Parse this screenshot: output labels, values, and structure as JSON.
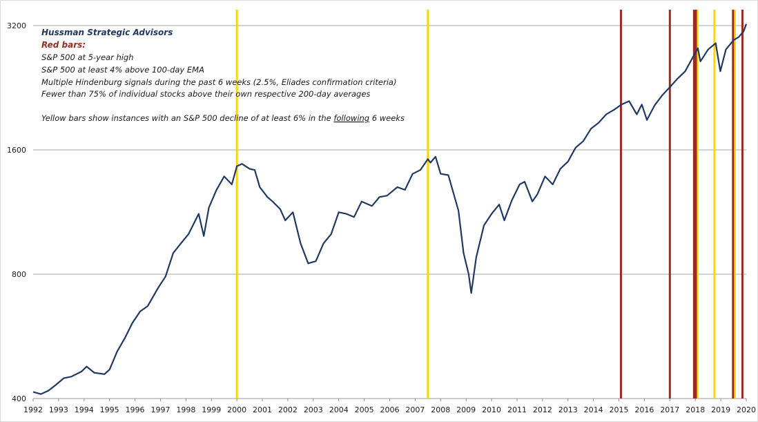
{
  "chart_data": {
    "type": "line",
    "y_scale": "log2",
    "ylim": [
      400,
      3200
    ],
    "y_ticks": [
      "400",
      "800",
      "1600",
      "3200"
    ],
    "xlim": [
      1992.0,
      2020.0
    ],
    "x_ticks": [
      "1992",
      "1993",
      "1994",
      "1995",
      "1996",
      "1997",
      "1998",
      "1999",
      "2000",
      "2001",
      "2002",
      "2003",
      "2004",
      "2005",
      "2006",
      "2007",
      "2008",
      "2009",
      "2010",
      "2011",
      "2012",
      "2013",
      "2014",
      "2015",
      "2016",
      "2017",
      "2018",
      "2019",
      "2020"
    ],
    "grid": "horizontal",
    "colors": {
      "series": "#1f3864",
      "red_bar": "#9b2d20",
      "yellow_bar": "#ffd400"
    },
    "series": [
      {
        "x": [
          1992.0,
          1992.3,
          1992.6,
          1992.9,
          1993.2,
          1993.5,
          1993.9,
          1994.1,
          1994.4,
          1994.8,
          1995.0,
          1995.3,
          1995.6,
          1995.9,
          1996.2,
          1996.5,
          1996.9,
          1997.2,
          1997.5,
          1997.8,
          1998.1,
          1998.5,
          1998.7,
          1998.9,
          1999.2,
          1999.5,
          1999.8,
          2000.0,
          2000.2,
          2000.5,
          2000.7,
          2000.9,
          2001.2,
          2001.4,
          2001.7,
          2001.9,
          2002.2,
          2002.5,
          2002.8,
          2003.1,
          2003.4,
          2003.7,
          2004.0,
          2004.3,
          2004.6,
          2004.9,
          2005.3,
          2005.6,
          2005.9,
          2006.3,
          2006.6,
          2006.9,
          2007.2,
          2007.5,
          2007.6,
          2007.8,
          2008.0,
          2008.3,
          2008.5,
          2008.7,
          2008.9,
          2009.1,
          2009.2,
          2009.4,
          2009.7,
          2010.0,
          2010.3,
          2010.5,
          2010.8,
          2011.1,
          2011.3,
          2011.6,
          2011.8,
          2012.1,
          2012.4,
          2012.7,
          2013.0,
          2013.3,
          2013.6,
          2013.9,
          2014.2,
          2014.5,
          2014.8,
          2015.1,
          2015.4,
          2015.7,
          2015.9,
          2016.1,
          2016.4,
          2016.7,
          2017.0,
          2017.3,
          2017.6,
          2017.9,
          2018.1,
          2018.2,
          2018.5,
          2018.8,
          2018.98,
          2019.2,
          2019.5,
          2019.7,
          2019.9,
          2020.0
        ],
        "y": [
          415,
          410,
          418,
          432,
          448,
          452,
          465,
          478,
          462,
          458,
          470,
          520,
          560,
          610,
          650,
          670,
          740,
          790,
          900,
          950,
          1000,
          1120,
          990,
          1160,
          1280,
          1380,
          1320,
          1460,
          1480,
          1440,
          1430,
          1300,
          1230,
          1200,
          1150,
          1080,
          1130,
          950,
          850,
          860,
          950,
          1000,
          1130,
          1120,
          1100,
          1200,
          1170,
          1230,
          1240,
          1300,
          1280,
          1400,
          1430,
          1520,
          1490,
          1540,
          1400,
          1390,
          1260,
          1140,
          900,
          800,
          720,
          880,
          1050,
          1120,
          1180,
          1080,
          1210,
          1320,
          1340,
          1200,
          1250,
          1380,
          1320,
          1440,
          1500,
          1620,
          1680,
          1800,
          1860,
          1950,
          2000,
          2060,
          2100,
          1950,
          2060,
          1890,
          2050,
          2170,
          2270,
          2380,
          2480,
          2680,
          2820,
          2620,
          2800,
          2900,
          2480,
          2800,
          2950,
          3000,
          3100,
          3230
        ]
      }
    ],
    "red_bars_x": [
      2015.08,
      2017.0,
      2017.95,
      2018.02,
      2019.48,
      2019.85
    ],
    "yellow_bars_x": [
      2000.0,
      2007.5,
      2018.08,
      2018.75,
      2019.55
    ],
    "annotations": {
      "title": "Hussman Strategic Advisors",
      "red_heading": "Red bars:",
      "red_lines": [
        "S&P 500 at 5-year high",
        "S&P 500 at least 4% above 100-day EMA",
        "Multiple Hindenburg signals during the past 6 weeks (2.5%, Eliades confirmation criteria)",
        "Fewer than 75% of individual stocks above their own respective 200-day averages"
      ],
      "yellow_note_before": "Yellow bars show instances with an S&P 500  decline of at least 6% in the ",
      "yellow_note_underlined": "following",
      "yellow_note_after": " 6 weeks"
    }
  }
}
